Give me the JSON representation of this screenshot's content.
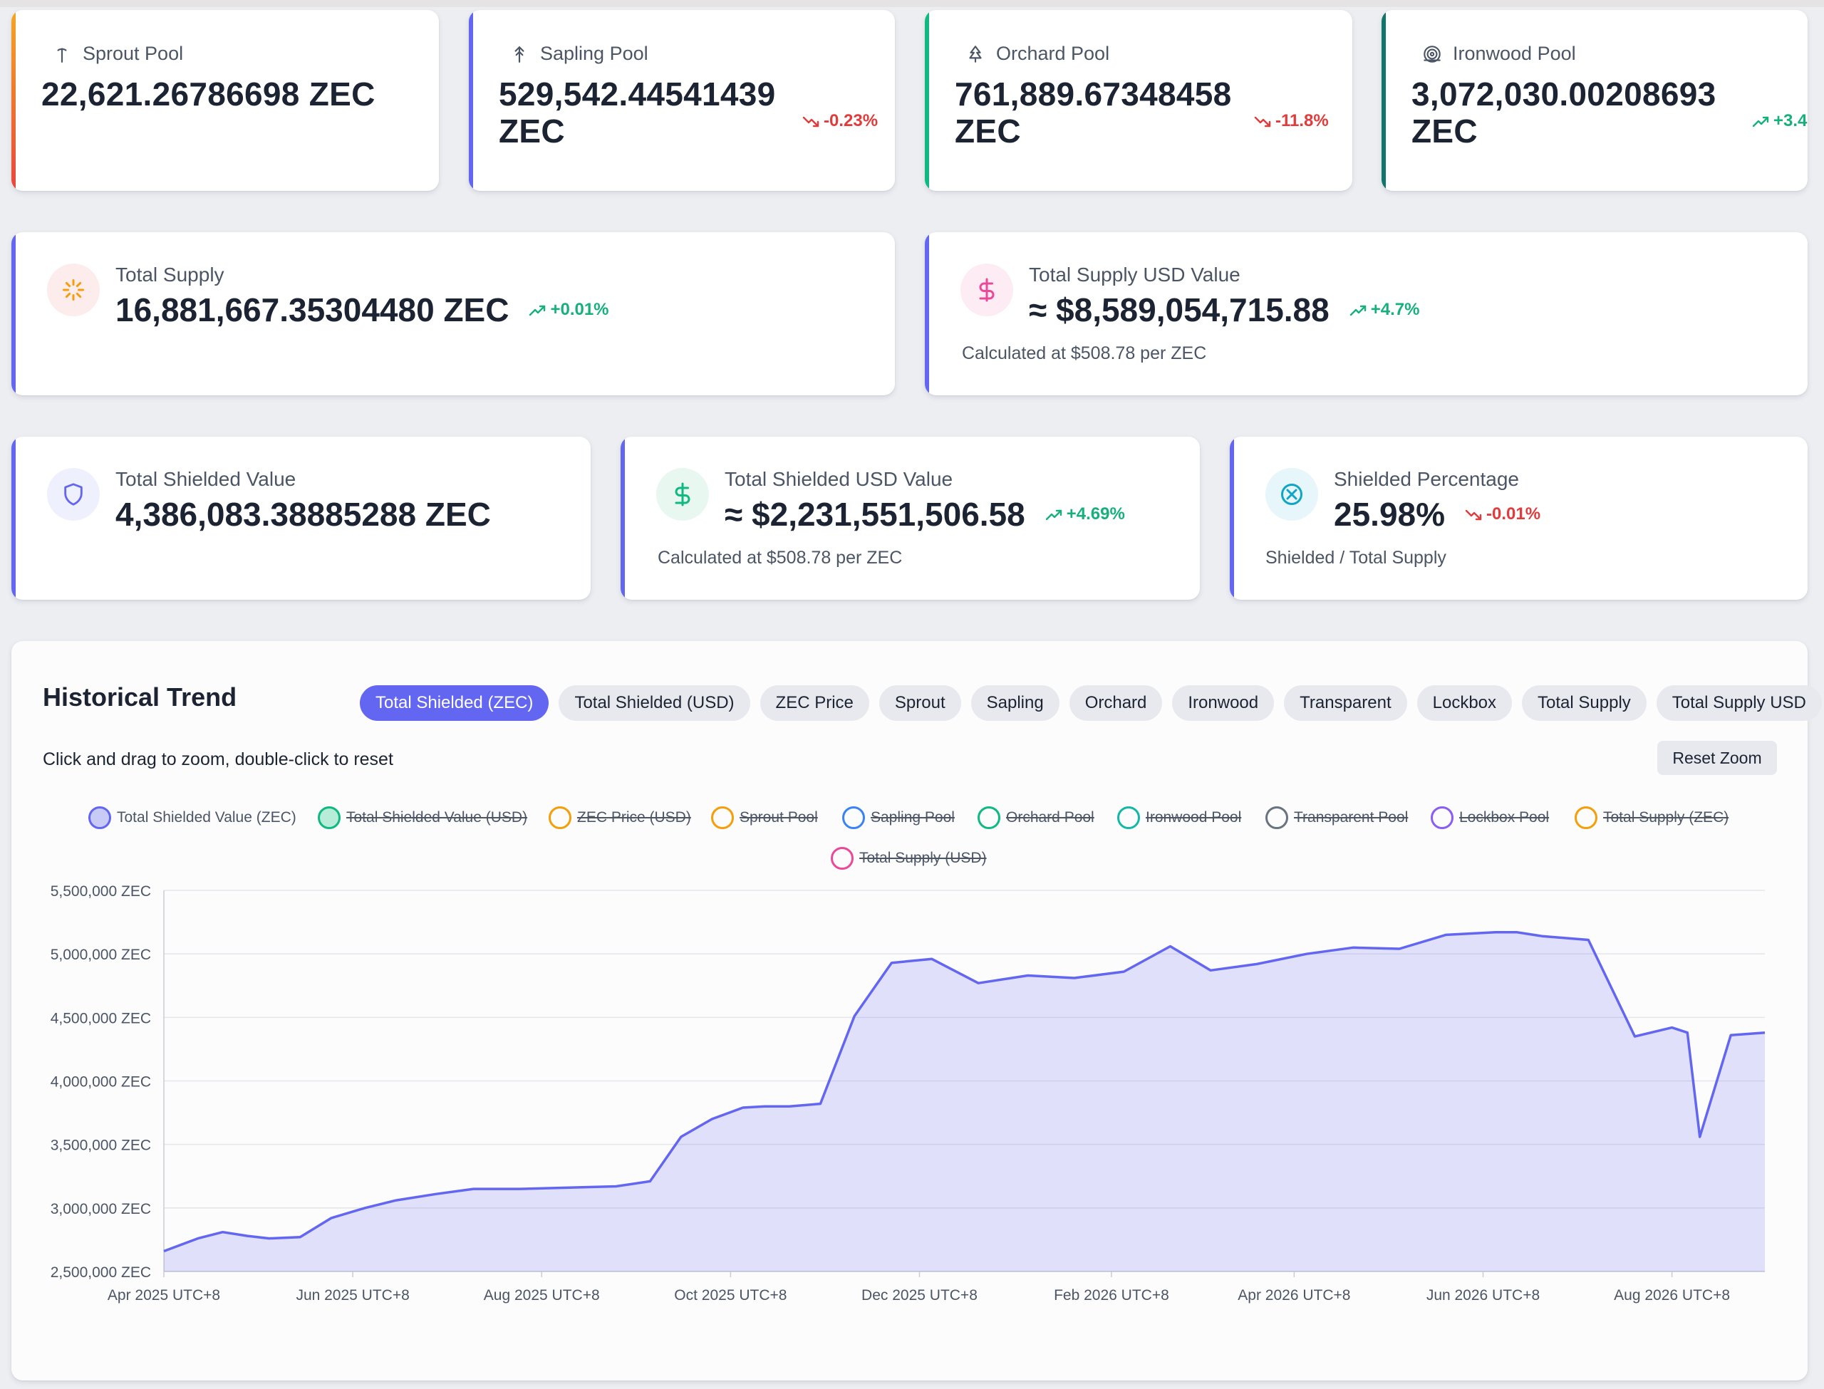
{
  "pools": [
    {
      "label": "Sprout Pool",
      "value": "22,621.26786698 ZEC",
      "change": "",
      "dir": "",
      "icon": "sprout-icon"
    },
    {
      "label": "Sapling Pool",
      "value": "529,542.44541439\nZEC",
      "change": "-0.23%",
      "dir": "down",
      "icon": "sapling-icon"
    },
    {
      "label": "Orchard Pool",
      "value": "761,889.67348458\nZEC",
      "change": "-11.8%",
      "dir": "down",
      "icon": "orchard-icon"
    },
    {
      "label": "Ironwood Pool",
      "value": "3,072,030.00208693\nZEC",
      "change": "+3.4",
      "dir": "up",
      "icon": "ironwood-icon"
    }
  ],
  "supply": {
    "label": "Total Supply",
    "value": "16,881,667.35304480 ZEC",
    "change": "+0.01%"
  },
  "supply_usd": {
    "label": "Total Supply USD Value",
    "value": "≈ $8,589,054,715.88",
    "change": "+4.7%",
    "sub": "Calculated at $508.78 per ZEC"
  },
  "shielded": {
    "label": "Total Shielded Value",
    "value": "4,386,083.38885288 ZEC"
  },
  "shielded_usd": {
    "label": "Total Shielded USD Value",
    "value": "≈ $2,231,551,506.58",
    "change": "+4.69%",
    "sub": "Calculated at $508.78 per ZEC"
  },
  "shielded_pct": {
    "label": "Shielded Percentage",
    "value": "25.98%",
    "change": "-0.01%",
    "sub": "Shielded / Total Supply"
  },
  "chart": {
    "title": "Historical Trend",
    "tabs": [
      "Total Shielded (ZEC)",
      "Total Shielded (USD)",
      "ZEC Price",
      "Sprout",
      "Sapling",
      "Orchard",
      "Ironwood",
      "Transparent",
      "Lockbox",
      "Total Supply",
      "Total Supply USD"
    ],
    "active_tab": "Total Shielded (ZEC)",
    "hint": "Click and drag to zoom, double-click to reset",
    "reset_label": "Reset Zoom"
  },
  "colors": {
    "accent": "#6366f1",
    "up": "#17b07a",
    "down": "#e23b3b"
  },
  "chart_data": {
    "type": "area",
    "title": "",
    "xlabel": "",
    "ylabel": "",
    "y_unit": " ZEC",
    "ylim": [
      2500000,
      5500000
    ],
    "xlim": [
      "2025-04-01",
      "2026-08-31"
    ],
    "grid": true,
    "legend_position": "top",
    "y_ticks": [
      "2,500,000 ZEC",
      "3,000,000 ZEC",
      "3,500,000 ZEC",
      "4,000,000 ZEC",
      "4,500,000 ZEC",
      "5,000,000 ZEC",
      "5,500,000 ZEC"
    ],
    "x_ticks": [
      "Apr 2025 UTC+8",
      "Jun 2025 UTC+8",
      "Aug 2025 UTC+8",
      "Oct 2025 UTC+8",
      "Dec 2025 UTC+8",
      "Feb 2026 UTC+8",
      "Apr 2026 UTC+8",
      "Jun 2026 UTC+8",
      "Aug 2026 UTC+8"
    ],
    "series_legend": [
      {
        "name": "Total Shielded Value (ZEC)",
        "color": "#6366f1",
        "visible": true
      },
      {
        "name": "Total Shielded Value (USD)",
        "color": "#10b981",
        "visible": false
      },
      {
        "name": "ZEC Price (USD)",
        "color": "#f59e0b",
        "visible": false
      },
      {
        "name": "Sprout Pool",
        "color": "#f59e0b",
        "visible": false
      },
      {
        "name": "Sapling Pool",
        "color": "#3b82f6",
        "visible": false
      },
      {
        "name": "Orchard Pool",
        "color": "#10b981",
        "visible": false
      },
      {
        "name": "Ironwood Pool",
        "color": "#14b8a6",
        "visible": false
      },
      {
        "name": "Transparent Pool",
        "color": "#6b7280",
        "visible": false
      },
      {
        "name": "Lockbox Pool",
        "color": "#8b5cf6",
        "visible": false
      },
      {
        "name": "Total Supply (ZEC)",
        "color": "#f59e0b",
        "visible": false
      },
      {
        "name": "Total Supply (USD)",
        "color": "#ec4899",
        "visible": false
      }
    ],
    "series": [
      {
        "name": "Total Shielded Value (ZEC)",
        "x": [
          "2025-04-01",
          "2025-04-12",
          "2025-04-20",
          "2025-04-28",
          "2025-05-05",
          "2025-05-15",
          "2025-05-25",
          "2025-06-05",
          "2025-06-15",
          "2025-06-28",
          "2025-07-10",
          "2025-07-25",
          "2025-08-10",
          "2025-08-25",
          "2025-09-05",
          "2025-09-15",
          "2025-09-25",
          "2025-10-05",
          "2025-10-12",
          "2025-10-20",
          "2025-10-30",
          "2025-11-10",
          "2025-11-22",
          "2025-12-05",
          "2025-12-20",
          "2026-01-05",
          "2026-01-20",
          "2026-02-05",
          "2026-02-20",
          "2026-03-05",
          "2026-03-20",
          "2026-04-05",
          "2026-04-20",
          "2026-05-05",
          "2026-05-20",
          "2026-06-05",
          "2026-06-12",
          "2026-06-20",
          "2026-07-05",
          "2026-07-20",
          "2026-08-01",
          "2026-08-06",
          "2026-08-10",
          "2026-08-20",
          "2026-08-31"
        ],
        "values": [
          2660000,
          2760000,
          2810000,
          2780000,
          2760000,
          2770000,
          2920000,
          3000000,
          3060000,
          3110000,
          3150000,
          3150000,
          3160000,
          3170000,
          3210000,
          3560000,
          3700000,
          3790000,
          3800000,
          3800000,
          3820000,
          4510000,
          4930000,
          4960000,
          4770000,
          4830000,
          4810000,
          4860000,
          5060000,
          4870000,
          4920000,
          5000000,
          5050000,
          5040000,
          5150000,
          5170000,
          5170000,
          5140000,
          5110000,
          4350000,
          4420000,
          4380000,
          3560000,
          4360000,
          4380000
        ]
      }
    ]
  }
}
